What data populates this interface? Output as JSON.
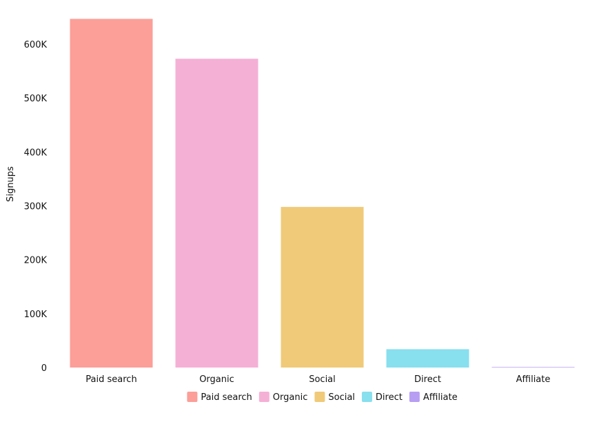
{
  "chart_data": {
    "type": "bar",
    "categories": [
      "Paid search",
      "Organic",
      "Social",
      "Direct",
      "Affiliate"
    ],
    "values": [
      647000,
      573000,
      298000,
      34000,
      1000
    ],
    "ylabel": "Signups",
    "xlabel": "",
    "ylim": [
      0,
      650000
    ],
    "yticks": [
      0,
      100000,
      200000,
      300000,
      400000,
      500000,
      600000
    ],
    "ytick_labels": [
      "0",
      "100K",
      "200K",
      "300K",
      "400K",
      "500K",
      "600K"
    ],
    "legend_position": "bottom-center",
    "grid": false,
    "colors": [
      "#fb9f98",
      "#f5b0d6",
      "#f0ca78",
      "#88dfee",
      "#b79ef3"
    ]
  }
}
